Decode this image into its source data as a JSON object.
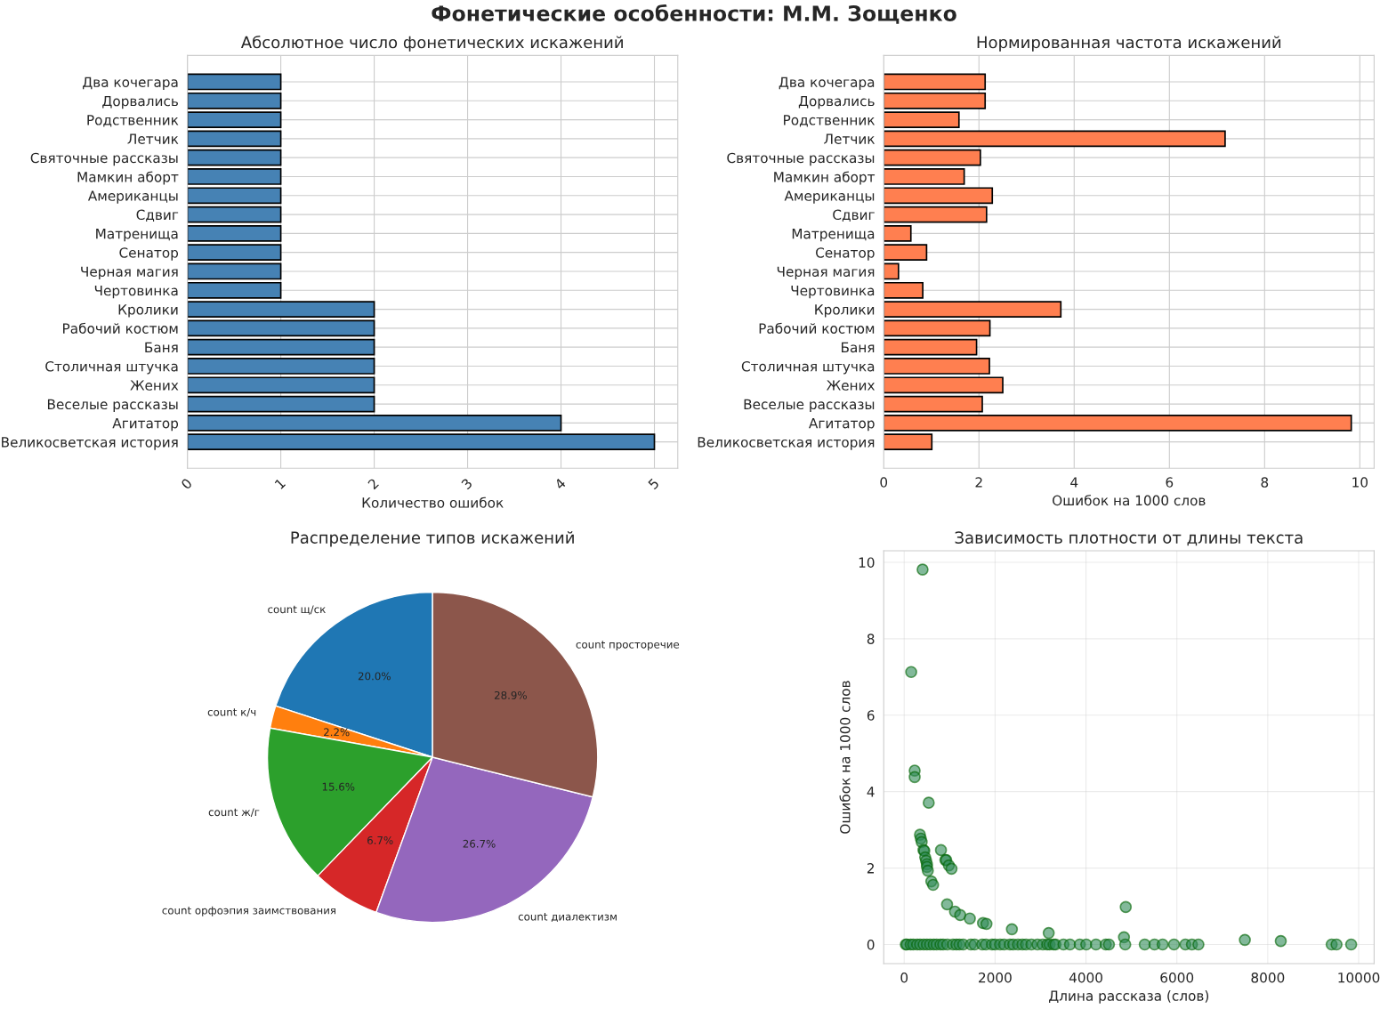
{
  "chart_data": [
    {
      "type": "bar",
      "orientation": "horizontal",
      "title": "Абсолютное число фонетических искажений",
      "xlabel": "Количество ошибок",
      "annotations": [
        "Фонетические особенности: М.М. Зощенко"
      ],
      "categories": [
        "Два кочегара",
        "Дорвались",
        "Родственник",
        "Летчик",
        "Святочные рассказы",
        "Мамкин аборт",
        "Американцы",
        "Сдвиг",
        "Матренища",
        "Сенатор",
        "Черная магия",
        "Чертовинка",
        "Кролики",
        "Рабочий костюм",
        "Баня",
        "Столичная штучка",
        "Жених",
        "Веселые рассказы",
        "Агитатор",
        "Великосветская история"
      ],
      "values": [
        1,
        1,
        1,
        1,
        1,
        1,
        1,
        1,
        1,
        1,
        1,
        1,
        2,
        2,
        2,
        2,
        2,
        2,
        4,
        5
      ],
      "color": "#4682b4",
      "xlim": [
        0,
        5.25
      ],
      "xticks": [
        0,
        1,
        2,
        3,
        4,
        5
      ],
      "grid": true
    },
    {
      "type": "bar",
      "orientation": "horizontal",
      "title": "Нормированная частота искажений",
      "xlabel": "Ошибок на 1000 слов",
      "categories": [
        "Два кочегара",
        "Дорвались",
        "Родственник",
        "Летчик",
        "Святочные рассказы",
        "Мамкин аборт",
        "Американцы",
        "Сдвиг",
        "Матренища",
        "Сенатор",
        "Черная магия",
        "Чертовинка",
        "Кролики",
        "Рабочий костюм",
        "Баня",
        "Столичная штучка",
        "Жених",
        "Веселые рассказы",
        "Агитатор",
        "Великосветская история"
      ],
      "values": [
        2.13,
        2.13,
        1.58,
        7.17,
        2.03,
        1.69,
        2.28,
        2.16,
        0.57,
        0.9,
        0.31,
        0.82,
        3.72,
        2.23,
        1.95,
        2.22,
        2.5,
        2.07,
        9.82,
        1.01
      ],
      "color": "#ff7f50",
      "xlim": [
        0,
        10.3
      ],
      "xticks": [
        0,
        2,
        4,
        6,
        8,
        10
      ],
      "grid": true
    },
    {
      "type": "pie",
      "title": "Распределение типов искажений",
      "categories": [
        "count щ/ск",
        "count к/ч",
        "count ж/г",
        "count орфоэпия заимствования",
        "count диалектизм",
        "count просторечие"
      ],
      "values": [
        20.0,
        2.2,
        15.6,
        6.7,
        26.7,
        28.9
      ],
      "value_labels": [
        "20.0%",
        "2.2%",
        "15.6%",
        "6.7%",
        "26.7%",
        "28.9%"
      ],
      "colors": [
        "#1f77b4",
        "#ff7f0e",
        "#2ca02c",
        "#d62728",
        "#9467bd",
        "#8c564b"
      ]
    },
    {
      "type": "scatter",
      "title": "Зависимость плотности от длины текста",
      "xlabel": "Длина рассказа (слов)",
      "ylabel": "Ошибок на 1000 слов",
      "color": "#2e8b57",
      "marker": "circle",
      "grid": true,
      "xlim": [
        -450,
        10340
      ],
      "ylim": [
        -0.5,
        10.3
      ],
      "xticks": [
        0,
        2000,
        4000,
        6000,
        8000,
        10000
      ],
      "yticks": [
        0,
        2,
        4,
        6,
        8,
        10
      ],
      "x": [
        405,
        154,
        231,
        231,
        540,
        347,
        366,
        385,
        424,
        443,
        462,
        482,
        501,
        501,
        520,
        597,
        636,
        809,
        906,
        925,
        983,
        1041,
        944,
        1118,
        1233,
        1445,
        1734,
        1811,
        2370,
        3180,
        4875,
        4836,
        7496,
        8286,
        36,
        60,
        143,
        200,
        286,
        350,
        429,
        500,
        572,
        650,
        715,
        800,
        858,
        950,
        1073,
        1150,
        1216,
        1300,
        1466,
        1550,
        1717,
        1800,
        1931,
        2000,
        2110,
        2200,
        2325,
        2400,
        2504,
        2600,
        2682,
        2800,
        2933,
        3050,
        3147,
        3200,
        3290,
        3330,
        3505,
        3648,
        3863,
        4006,
        4220,
        4435,
        4506,
        4864,
        5293,
        5508,
        5687,
        5937,
        6187,
        6331,
        6474,
        9406,
        9513,
        9835
      ],
      "values": [
        9.81,
        7.13,
        4.55,
        4.38,
        3.71,
        2.87,
        2.77,
        2.68,
        2.47,
        2.45,
        2.28,
        2.19,
        2.1,
        2.03,
        1.93,
        1.65,
        1.56,
        2.47,
        2.21,
        2.21,
        2.07,
        1.98,
        1.05,
        0.86,
        0.77,
        0.68,
        0.56,
        0.54,
        0.4,
        0.3,
        0.98,
        0.19,
        0.12,
        0.09,
        0,
        0,
        0,
        0,
        0,
        0,
        0,
        0,
        0,
        0,
        0,
        0,
        0,
        0,
        0,
        0,
        0,
        0,
        0,
        0,
        0,
        0,
        0,
        0,
        0,
        0,
        0,
        0,
        0,
        0,
        0,
        0,
        0,
        0,
        0,
        0,
        0,
        0,
        0,
        0,
        0,
        0,
        0,
        0,
        0,
        0,
        0,
        0,
        0,
        0,
        0,
        0,
        0,
        0,
        0,
        0
      ]
    }
  ]
}
